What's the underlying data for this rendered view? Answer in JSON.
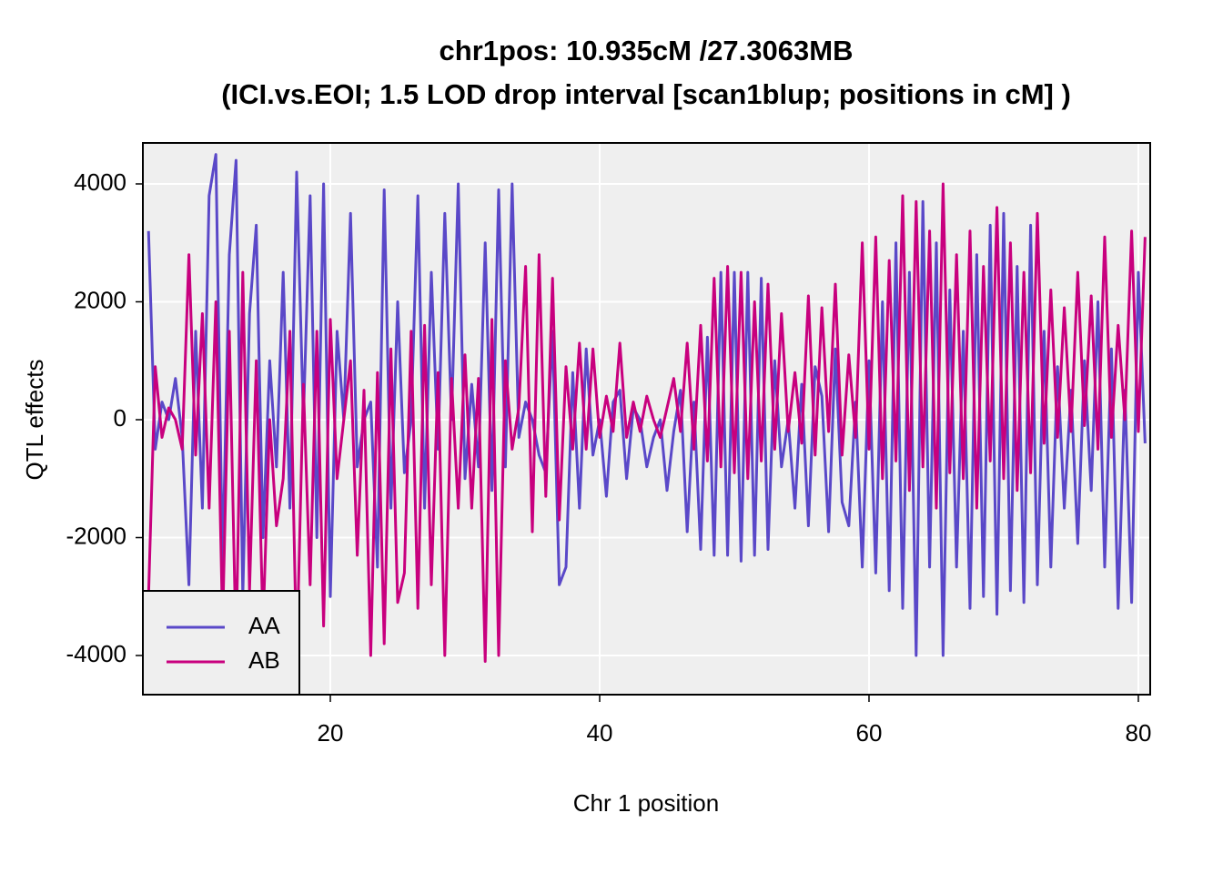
{
  "chart_data": {
    "type": "line",
    "title": "chr1pos: 10.935cM /27.3063MB",
    "subtitle": "(ICI.vs.EOI; 1.5 LOD drop interval [scan1blup; positions in cM] )",
    "x_label": "Chr 1 position",
    "y_label": "QTL effects",
    "x": [
      6.5,
      7,
      7.5,
      8,
      8.5,
      9,
      9.5,
      10,
      10.5,
      11,
      11.5,
      12,
      12.5,
      13,
      13.5,
      14,
      14.5,
      15,
      15.5,
      16,
      16.5,
      17,
      17.5,
      18,
      18.5,
      19,
      19.5,
      20,
      20.5,
      21,
      21.5,
      22,
      22.5,
      23,
      23.5,
      24,
      24.5,
      25,
      25.5,
      26,
      26.5,
      27,
      27.5,
      28,
      28.5,
      29,
      29.5,
      30,
      30.5,
      31,
      31.5,
      32,
      32.5,
      33,
      33.5,
      34,
      34.5,
      35,
      35.5,
      36,
      36.5,
      37,
      37.5,
      38,
      38.5,
      39,
      39.5,
      40,
      40.5,
      41,
      41.5,
      42,
      42.5,
      43,
      43.5,
      44,
      44.5,
      45,
      45.5,
      46,
      46.5,
      47,
      47.5,
      48,
      48.5,
      49,
      49.5,
      50,
      50.5,
      51,
      51.5,
      52,
      52.5,
      53,
      53.5,
      54,
      54.5,
      55,
      55.5,
      56,
      56.5,
      57,
      57.5,
      58,
      58.5,
      59,
      59.5,
      60,
      60.5,
      61,
      61.5,
      62,
      62.5,
      63,
      63.5,
      64,
      64.5,
      65,
      65.5,
      66,
      66.5,
      67,
      67.5,
      68,
      68.5,
      69,
      69.5,
      70,
      70.5,
      71,
      71.5,
      72,
      72.5,
      73,
      73.5,
      74,
      74.5,
      75,
      75.5,
      76,
      76.5,
      77,
      77.5,
      78,
      78.5,
      79,
      79.5,
      80,
      80.5
    ],
    "series": [
      {
        "name": "AA",
        "color": "#5a48c8",
        "values": [
          3200,
          -500,
          300,
          0,
          700,
          -300,
          -2800,
          1500,
          -1500,
          3800,
          4500,
          -2500,
          2800,
          4400,
          -3000,
          1800,
          3300,
          -2000,
          1000,
          -800,
          2500,
          -1500,
          4200,
          0,
          3800,
          -2000,
          4000,
          -3000,
          1500,
          0,
          3500,
          -800,
          0,
          300,
          -2500,
          3900,
          -1500,
          2000,
          -900,
          0,
          3800,
          -1500,
          2500,
          -500,
          3500,
          0,
          4000,
          -1000,
          600,
          -800,
          3000,
          -1200,
          3900,
          -800,
          4000,
          -300,
          300,
          0,
          -600,
          -900,
          1500,
          -2800,
          -2500,
          800,
          -1500,
          1200,
          -600,
          0,
          -1300,
          300,
          500,
          -1000,
          200,
          0,
          -800,
          -300,
          0,
          -1200,
          -200,
          500,
          -1900,
          300,
          -2200,
          1400,
          -2300,
          2500,
          -2300,
          2500,
          -2400,
          2500,
          -2300,
          2400,
          -2200,
          1000,
          -800,
          0,
          -1500,
          600,
          -1800,
          900,
          400,
          -1900,
          1200,
          -1400,
          -1800,
          300,
          -2500,
          1000,
          -2600,
          2000,
          -2900,
          3000,
          -3200,
          2500,
          -4000,
          3700,
          -2500,
          3000,
          -4000,
          2200,
          -2500,
          1500,
          -3200,
          2800,
          -3000,
          3300,
          -3300,
          3500,
          -2900,
          2600,
          -3100,
          3300,
          -2800,
          1500,
          -2500,
          900,
          -1500,
          500,
          -2100,
          1000,
          -1200,
          2000,
          -2500,
          1200,
          -3200,
          500,
          -3100,
          2500,
          -400
        ]
      },
      {
        "name": "AB",
        "color": "#c8007e",
        "values": [
          -3000,
          900,
          -300,
          200,
          0,
          -500,
          2800,
          -600,
          1800,
          -1500,
          2000,
          -3500,
          1500,
          -3900,
          2500,
          -2900,
          1000,
          -3500,
          0,
          -1800,
          -1000,
          1500,
          -4100,
          600,
          -2800,
          1500,
          -3500,
          1700,
          -1000,
          0,
          1000,
          -2300,
          500,
          -4000,
          800,
          -3800,
          1200,
          -3100,
          -2600,
          1500,
          -3200,
          1600,
          -2800,
          800,
          -4000,
          700,
          -1500,
          1100,
          -1500,
          700,
          -4100,
          1700,
          -4000,
          1000,
          -500,
          200,
          2600,
          -1900,
          2800,
          -1300,
          2400,
          -1700,
          900,
          -500,
          1300,
          -500,
          1200,
          -300,
          400,
          -200,
          1300,
          -300,
          300,
          -200,
          400,
          0,
          -300,
          200,
          700,
          -200,
          1300,
          -500,
          1600,
          -700,
          2400,
          -800,
          2600,
          -900,
          2500,
          -1000,
          2000,
          -700,
          2300,
          -500,
          1800,
          -200,
          800,
          -400,
          2100,
          -600,
          1900,
          -200,
          2300,
          -600,
          1100,
          -300,
          3000,
          -500,
          3100,
          -1000,
          2700,
          -700,
          3800,
          -1200,
          3700,
          -800,
          3200,
          -1500,
          4000,
          -900,
          2800,
          -1000,
          3200,
          -1500,
          2600,
          -700,
          3600,
          -1000,
          3000,
          -1200,
          2500,
          -900,
          3500,
          -400,
          2200,
          -300,
          1900,
          -200,
          2500,
          -100,
          2100,
          -500,
          3100,
          -300,
          1600,
          0,
          3200,
          -200,
          3100
        ]
      }
    ],
    "xlim": [
      6.08,
      80.88
    ],
    "ylim": [
      -4664,
      4695
    ],
    "xticks": [
      20,
      40,
      60,
      80
    ],
    "yticks": [
      -4000,
      -2000,
      0,
      2000,
      4000
    ],
    "grid": true,
    "legend": "bottom-left"
  }
}
